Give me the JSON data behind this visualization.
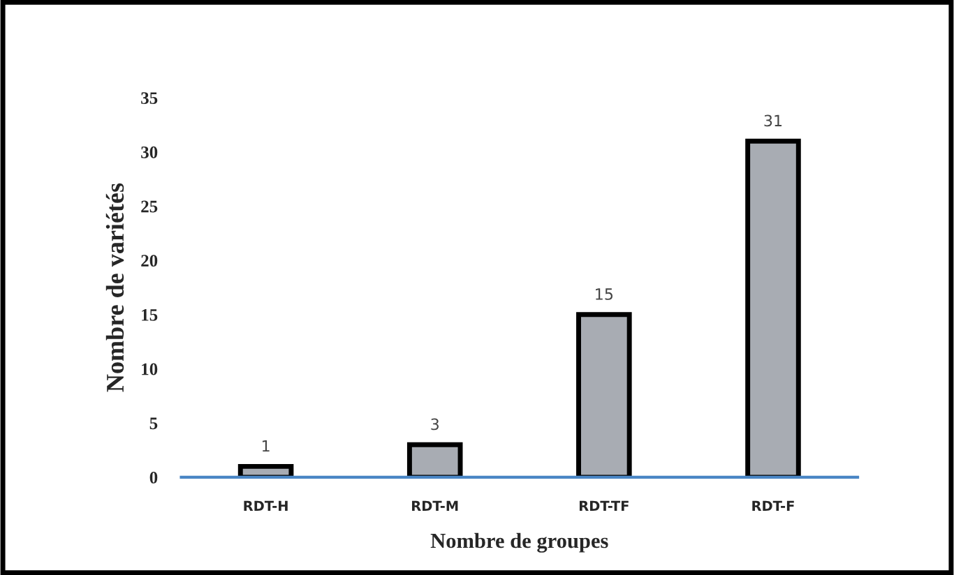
{
  "chart_data": {
    "type": "bar",
    "xlabel": "Nombre de groupes",
    "ylabel": "Nombre de variétés",
    "categories": [
      "RDT-H",
      "RDT-M",
      "RDT-TF",
      "RDT-F"
    ],
    "values": [
      1,
      3,
      15,
      31
    ],
    "color": "#a8acb3",
    "ylim": [
      0,
      35
    ],
    "yticks": [
      0,
      5,
      10,
      15,
      20,
      25,
      30,
      35
    ],
    "grid": false,
    "data_labels": true
  }
}
